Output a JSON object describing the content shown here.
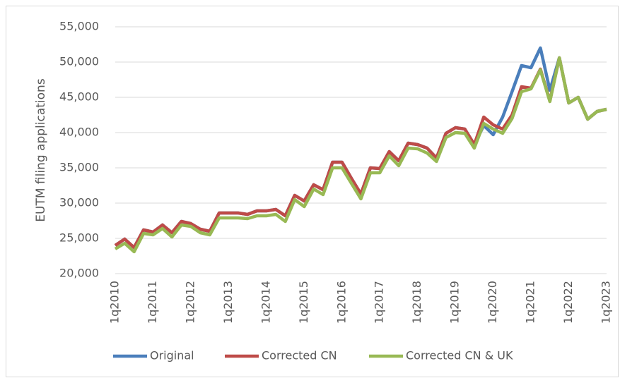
{
  "chart_data": {
    "type": "line",
    "y_label": "EUTM filing applications",
    "categories": [
      "1q2010",
      null,
      null,
      null,
      "1q2011",
      null,
      null,
      null,
      "1q2012",
      null,
      null,
      null,
      "1q2013",
      null,
      null,
      null,
      "1q2014",
      null,
      null,
      null,
      "1q2015",
      null,
      null,
      null,
      "1q2016",
      null,
      null,
      null,
      "1q2017",
      null,
      null,
      null,
      "1q2018",
      null,
      null,
      null,
      "1q2019",
      null,
      null,
      null,
      "1q2020",
      null,
      null,
      null,
      "1q2021",
      null,
      null,
      null,
      "1q2022",
      null,
      null,
      null,
      "1q2023"
    ],
    "series": [
      {
        "name": "Original",
        "color": "#4a7ebb",
        "values": [
          24000,
          24900,
          23700,
          26200,
          25900,
          26900,
          25800,
          27400,
          27100,
          26300,
          26000,
          28600,
          28600,
          28600,
          28400,
          28900,
          28900,
          29100,
          28200,
          31100,
          30300,
          32600,
          31900,
          35800,
          35800,
          33500,
          31300,
          35000,
          34900,
          37300,
          36000,
          38500,
          38300,
          37800,
          36400,
          39900,
          40700,
          40500,
          38300,
          41000,
          39700,
          42200,
          45800,
          49500,
          49200,
          52000,
          46000,
          50600,
          44200,
          45000,
          41900,
          43000,
          43300
        ]
      },
      {
        "name": "Corrected CN",
        "color": "#be4b48",
        "values": [
          24000,
          24900,
          23700,
          26200,
          25900,
          26900,
          25800,
          27400,
          27100,
          26300,
          26000,
          28600,
          28600,
          28600,
          28400,
          28900,
          28900,
          29100,
          28200,
          31100,
          30300,
          32600,
          31900,
          35800,
          35800,
          33500,
          31300,
          35000,
          34900,
          37300,
          36000,
          38500,
          38300,
          37800,
          36400,
          39900,
          40700,
          40500,
          38300,
          42200,
          41100,
          40500,
          42500,
          46500,
          46300,
          49000,
          44500,
          50600,
          44200,
          45000,
          41900,
          43000,
          43300
        ]
      },
      {
        "name": "Corrected CN & UK",
        "color": "#98b954",
        "values": [
          23500,
          24300,
          23100,
          25700,
          25500,
          26400,
          25200,
          26900,
          26700,
          25800,
          25500,
          27900,
          27900,
          27900,
          27800,
          28200,
          28200,
          28400,
          27400,
          30500,
          29500,
          32000,
          31200,
          35000,
          35000,
          32800,
          30600,
          34300,
          34300,
          36700,
          35300,
          37800,
          37700,
          37100,
          35900,
          39300,
          40000,
          39900,
          37800,
          41300,
          40500,
          39900,
          42000,
          45800,
          46200,
          48900,
          44400,
          50600,
          44200,
          45000,
          41900,
          43000,
          43300
        ]
      }
    ],
    "ylim": [
      20000,
      55000
    ],
    "yticks": [
      {
        "value": 20000,
        "label": "20,000"
      },
      {
        "value": 25000,
        "label": "25,000"
      },
      {
        "value": 30000,
        "label": "30,000"
      },
      {
        "value": 35000,
        "label": "35,000"
      },
      {
        "value": 40000,
        "label": "40,000"
      },
      {
        "value": 45000,
        "label": "45,000"
      },
      {
        "value": 50000,
        "label": "50,000"
      },
      {
        "value": 55000,
        "label": "55,000"
      }
    ],
    "grid": true,
    "legend": "bottom"
  }
}
